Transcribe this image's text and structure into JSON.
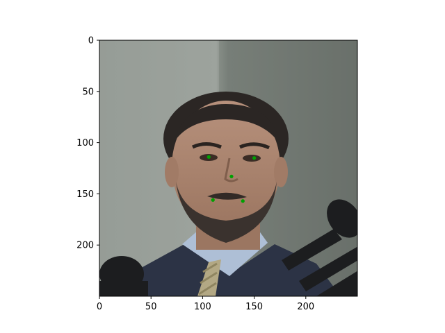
{
  "chart_data": {
    "type": "scatter",
    "title": "",
    "xlabel": "",
    "ylabel": "",
    "image_shown": "grayscale-background face photo of a man in a suit and striped tie in front of microphones",
    "image_icon": "face-photo",
    "xlim": [
      0,
      250
    ],
    "ylim": [
      250,
      0
    ],
    "y_inverted": true,
    "grid": false,
    "legend": "none",
    "xticks": [
      0,
      50,
      100,
      150,
      200
    ],
    "yticks": [
      0,
      50,
      100,
      150,
      200
    ],
    "xtick_labels": [
      "0",
      "50",
      "100",
      "150",
      "200"
    ],
    "ytick_labels": [
      "0",
      "50",
      "100",
      "150",
      "200"
    ],
    "marker_color": "#00a000",
    "points": [
      {
        "x": 106,
        "y": 114
      },
      {
        "x": 150,
        "y": 115
      },
      {
        "x": 128,
        "y": 133
      },
      {
        "x": 110,
        "y": 156
      },
      {
        "x": 139,
        "y": 157
      }
    ]
  }
}
